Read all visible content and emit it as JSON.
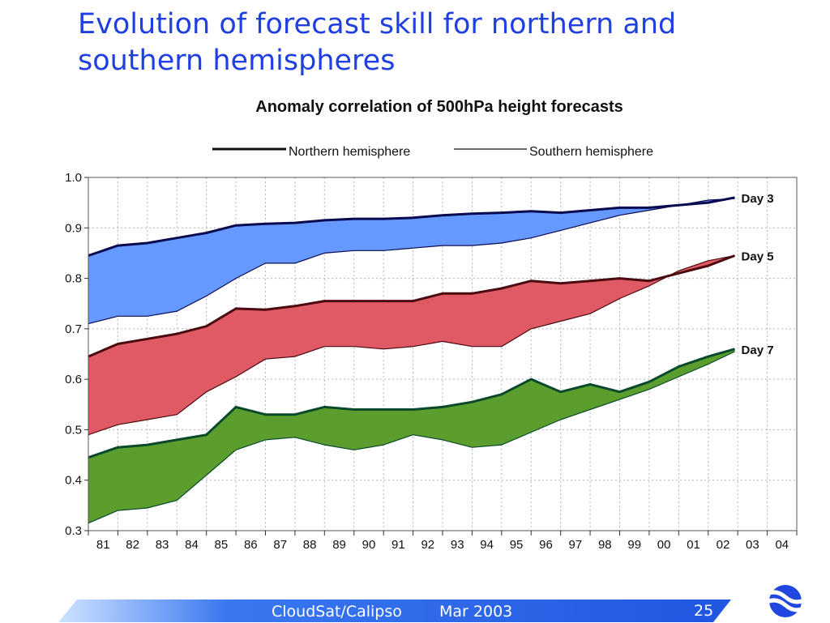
{
  "slide": {
    "title": "Evolution of forecast skill for northern and southern hemispheres",
    "footer": {
      "source": "CloudSat/Calipso",
      "date": "Mar 2003",
      "page": "25"
    },
    "logo_icon": "ecmwf-logo-icon"
  },
  "chart_data": {
    "type": "area",
    "title": "Anomaly correlation of 500hPa height forecasts",
    "xlabel": "",
    "ylabel": "",
    "xlim": [
      1981,
      2005
    ],
    "ylim": [
      0.3,
      1.0
    ],
    "ytick_values": [
      0.3,
      0.4,
      0.5,
      0.6,
      0.7,
      0.8,
      0.9,
      1.0
    ],
    "yticks": [
      "0.3",
      "0.4",
      "0.5",
      "0.6",
      "0.7",
      "0.8",
      "0.9",
      "1.0"
    ],
    "xticks": [
      "81",
      "82",
      "83",
      "84",
      "85",
      "86",
      "87",
      "88",
      "89",
      "90",
      "91",
      "92",
      "93",
      "94",
      "95",
      "96",
      "97",
      "98",
      "99",
      "00",
      "01",
      "02",
      "03",
      "04"
    ],
    "grid": true,
    "legend": {
      "position": "top",
      "northern": "Northern hemisphere",
      "southern": "Southern hemisphere"
    },
    "series": [
      {
        "label": "Day 3",
        "fill": "#6699ff",
        "stroke": "#0a0a50",
        "x": [
          1981,
          1982,
          1983,
          1984,
          1985,
          1986,
          1987,
          1988,
          1989,
          1990,
          1991,
          1992,
          1993,
          1994,
          1995,
          1996,
          1997,
          1998,
          1999,
          2000,
          2001,
          2002,
          2002.9
        ],
        "northern": [
          0.845,
          0.865,
          0.87,
          0.88,
          0.89,
          0.905,
          0.908,
          0.91,
          0.915,
          0.918,
          0.918,
          0.92,
          0.925,
          0.928,
          0.93,
          0.933,
          0.93,
          0.935,
          0.94,
          0.94,
          0.945,
          0.95,
          0.96
        ],
        "southern": [
          0.71,
          0.725,
          0.725,
          0.735,
          0.765,
          0.8,
          0.83,
          0.83,
          0.85,
          0.855,
          0.855,
          0.86,
          0.865,
          0.865,
          0.87,
          0.88,
          0.895,
          0.91,
          0.925,
          0.935,
          0.945,
          0.955,
          0.958
        ]
      },
      {
        "label": "Day 5",
        "fill": "#e05a65",
        "stroke": "#4a0a10",
        "x": [
          1981,
          1982,
          1983,
          1984,
          1985,
          1986,
          1987,
          1988,
          1989,
          1990,
          1991,
          1992,
          1993,
          1994,
          1995,
          1996,
          1997,
          1998,
          1999,
          2000,
          2001,
          2002,
          2002.9
        ],
        "northern": [
          0.645,
          0.67,
          0.68,
          0.69,
          0.705,
          0.74,
          0.738,
          0.745,
          0.755,
          0.755,
          0.755,
          0.755,
          0.77,
          0.77,
          0.78,
          0.795,
          0.79,
          0.795,
          0.8,
          0.795,
          0.81,
          0.825,
          0.845
        ],
        "southern": [
          0.49,
          0.51,
          0.52,
          0.53,
          0.575,
          0.605,
          0.64,
          0.645,
          0.665,
          0.665,
          0.66,
          0.665,
          0.675,
          0.665,
          0.665,
          0.7,
          0.715,
          0.73,
          0.76,
          0.785,
          0.815,
          0.835,
          0.845
        ]
      },
      {
        "label": "Day 7",
        "fill": "#5c9e2e",
        "stroke": "#0a4a2a",
        "x": [
          1981,
          1982,
          1983,
          1984,
          1985,
          1986,
          1987,
          1988,
          1989,
          1990,
          1991,
          1992,
          1993,
          1994,
          1995,
          1996,
          1997,
          1998,
          1999,
          2000,
          2001,
          2002,
          2002.9
        ],
        "northern": [
          0.445,
          0.465,
          0.47,
          0.48,
          0.49,
          0.545,
          0.53,
          0.53,
          0.545,
          0.54,
          0.54,
          0.54,
          0.545,
          0.555,
          0.57,
          0.6,
          0.575,
          0.59,
          0.575,
          0.595,
          0.625,
          0.645,
          0.66
        ],
        "southern": [
          0.315,
          0.34,
          0.345,
          0.36,
          0.41,
          0.46,
          0.48,
          0.485,
          0.47,
          0.46,
          0.47,
          0.49,
          0.48,
          0.465,
          0.47,
          0.495,
          0.52,
          0.54,
          0.56,
          0.58,
          0.605,
          0.63,
          0.655
        ]
      }
    ]
  }
}
